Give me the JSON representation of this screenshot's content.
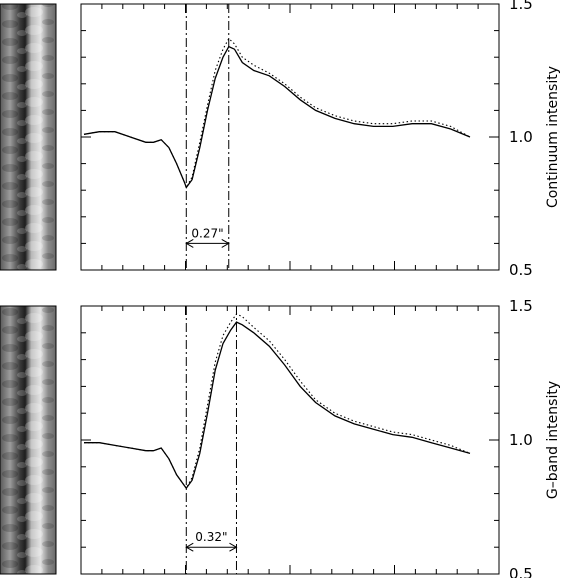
{
  "chart_data": [
    {
      "type": "line",
      "ylabel": "Continuum intensity",
      "ylim": [
        0.5,
        1.5
      ],
      "yticks": [
        "0.5",
        "1.0",
        "1.5"
      ],
      "xlim": [
        0,
        100
      ],
      "annotation": {
        "label": "0.27\"",
        "x_start": 26.5,
        "x_end": 37.5,
        "y": 0.6
      },
      "series": [
        {
          "style": "solid",
          "x": [
            0,
            4,
            8,
            12,
            16,
            18,
            20,
            22,
            24,
            26,
            26.5,
            28,
            30,
            32,
            34,
            36,
            37.5,
            39,
            41,
            44,
            48,
            52,
            56,
            60,
            65,
            70,
            75,
            80,
            85,
            90,
            95,
            100
          ],
          "y": [
            1.01,
            1.02,
            1.02,
            1.0,
            0.98,
            0.98,
            0.99,
            0.96,
            0.9,
            0.83,
            0.81,
            0.84,
            0.96,
            1.1,
            1.22,
            1.3,
            1.34,
            1.33,
            1.28,
            1.25,
            1.23,
            1.19,
            1.14,
            1.1,
            1.07,
            1.05,
            1.04,
            1.04,
            1.05,
            1.05,
            1.03,
            1.0
          ]
        },
        {
          "style": "dotted",
          "x": [
            0,
            4,
            8,
            12,
            16,
            18,
            20,
            22,
            24,
            26,
            26.5,
            28,
            30,
            32,
            34,
            36,
            37.5,
            39,
            41,
            44,
            48,
            52,
            56,
            60,
            65,
            70,
            75,
            80,
            85,
            90,
            95,
            100
          ],
          "y": [
            1.01,
            1.02,
            1.02,
            1.0,
            0.98,
            0.98,
            0.99,
            0.96,
            0.9,
            0.83,
            0.81,
            0.85,
            0.98,
            1.12,
            1.25,
            1.33,
            1.37,
            1.35,
            1.3,
            1.27,
            1.24,
            1.2,
            1.15,
            1.11,
            1.08,
            1.06,
            1.05,
            1.05,
            1.06,
            1.06,
            1.04,
            1.0
          ]
        }
      ]
    },
    {
      "type": "line",
      "ylabel": "G–band intensity",
      "ylim": [
        0.5,
        1.5
      ],
      "yticks": [
        "0.5",
        "1.0",
        "1.5"
      ],
      "xlim": [
        0,
        100
      ],
      "annotation": {
        "label": "0.32\"",
        "x_start": 26.5,
        "x_end": 39.5,
        "y": 0.6
      },
      "series": [
        {
          "style": "solid",
          "x": [
            0,
            4,
            8,
            12,
            16,
            18,
            20,
            22,
            24,
            26,
            26.5,
            28,
            30,
            32,
            34,
            36,
            38,
            39.5,
            41,
            44,
            48,
            52,
            56,
            60,
            65,
            70,
            75,
            80,
            85,
            90,
            95,
            100
          ],
          "y": [
            0.99,
            0.99,
            0.98,
            0.97,
            0.96,
            0.96,
            0.97,
            0.93,
            0.87,
            0.83,
            0.82,
            0.85,
            0.95,
            1.1,
            1.26,
            1.36,
            1.41,
            1.44,
            1.43,
            1.4,
            1.35,
            1.28,
            1.2,
            1.14,
            1.09,
            1.06,
            1.04,
            1.02,
            1.01,
            0.99,
            0.97,
            0.95
          ]
        },
        {
          "style": "dotted",
          "x": [
            0,
            4,
            8,
            12,
            16,
            18,
            20,
            22,
            24,
            26,
            26.5,
            28,
            30,
            32,
            34,
            36,
            38,
            39.5,
            41,
            44,
            48,
            52,
            56,
            60,
            65,
            70,
            75,
            80,
            85,
            90,
            95,
            100
          ],
          "y": [
            0.99,
            0.99,
            0.98,
            0.97,
            0.96,
            0.96,
            0.97,
            0.93,
            0.87,
            0.83,
            0.82,
            0.86,
            0.97,
            1.13,
            1.29,
            1.39,
            1.44,
            1.47,
            1.46,
            1.42,
            1.37,
            1.3,
            1.22,
            1.15,
            1.1,
            1.07,
            1.05,
            1.03,
            1.02,
            1.0,
            0.98,
            0.95
          ]
        }
      ]
    }
  ]
}
